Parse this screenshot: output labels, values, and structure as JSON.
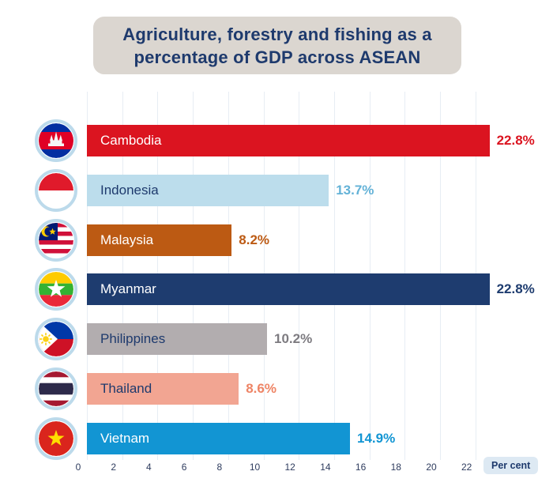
{
  "title": {
    "line1": "Agriculture, forestry and fishing as a",
    "line2": "percentage of GDP across ASEAN"
  },
  "axis": {
    "ticks": [
      0,
      2,
      4,
      6,
      8,
      10,
      12,
      14,
      16,
      18,
      20,
      22
    ],
    "unit_label": "Per cent"
  },
  "colors": {
    "background": "#FFFFFF",
    "title_box_bg": "#DBD6D0",
    "title_text": "#1E3A6D",
    "grid": "#E7EDF4",
    "tick_text": "#2E3C5E",
    "unit_badge_bg": "#DDE9F3",
    "unit_badge_text": "#1E3A6D",
    "flag_ring": "#BCDAEB"
  },
  "chart_data": {
    "type": "bar",
    "orientation": "horizontal",
    "title": "Agriculture, forestry and fishing as a percentage of GDP across ASEAN",
    "xlabel": "Per cent",
    "ylabel": "",
    "xlim": [
      0,
      23
    ],
    "x_ticks": [
      0,
      2,
      4,
      6,
      8,
      10,
      12,
      14,
      16,
      18,
      20,
      22
    ],
    "grid": true,
    "categories": [
      "Cambodia",
      "Indonesia",
      "Malaysia",
      "Myanmar",
      "Philippines",
      "Thailand",
      "Vietnam"
    ],
    "values": [
      22.8,
      13.7,
      8.2,
      22.8,
      10.2,
      8.6,
      14.9
    ],
    "bars": [
      {
        "name": "Cambodia",
        "value": 22.8,
        "value_label": "22.8%",
        "bar_color": "#DB1420",
        "name_color": "#FFFFFF",
        "value_label_color": "#DB1420",
        "flag_icon": "cambodia-flag-icon"
      },
      {
        "name": "Indonesia",
        "value": 13.7,
        "value_label": "13.7%",
        "bar_color": "#BCDDEC",
        "name_color": "#1E3A6D",
        "value_label_color": "#63B2D7",
        "flag_icon": "indonesia-flag-icon"
      },
      {
        "name": "Malaysia",
        "value": 8.2,
        "value_label": "8.2%",
        "bar_color": "#BC5A13",
        "name_color": "#FFFFFF",
        "value_label_color": "#BC5A13",
        "flag_icon": "malaysia-flag-icon"
      },
      {
        "name": "Myanmar",
        "value": 22.8,
        "value_label": "22.8%",
        "bar_color": "#1E3C6F",
        "name_color": "#FFFFFF",
        "value_label_color": "#1E3C6F",
        "flag_icon": "myanmar-flag-icon"
      },
      {
        "name": "Philippines",
        "value": 10.2,
        "value_label": "10.2%",
        "bar_color": "#B2ADAF",
        "name_color": "#1E3A6D",
        "value_label_color": "#7D7B80",
        "flag_icon": "philippines-flag-icon"
      },
      {
        "name": "Thailand",
        "value": 8.6,
        "value_label": "8.6%",
        "bar_color": "#F2A592",
        "name_color": "#1E3A6D",
        "value_label_color": "#EE8465",
        "flag_icon": "thailand-flag-icon"
      },
      {
        "name": "Vietnam",
        "value": 14.9,
        "value_label": "14.9%",
        "bar_color": "#1295D3",
        "name_color": "#FFFFFF",
        "value_label_color": "#1295D3",
        "flag_icon": "vietnam-flag-icon"
      }
    ]
  }
}
